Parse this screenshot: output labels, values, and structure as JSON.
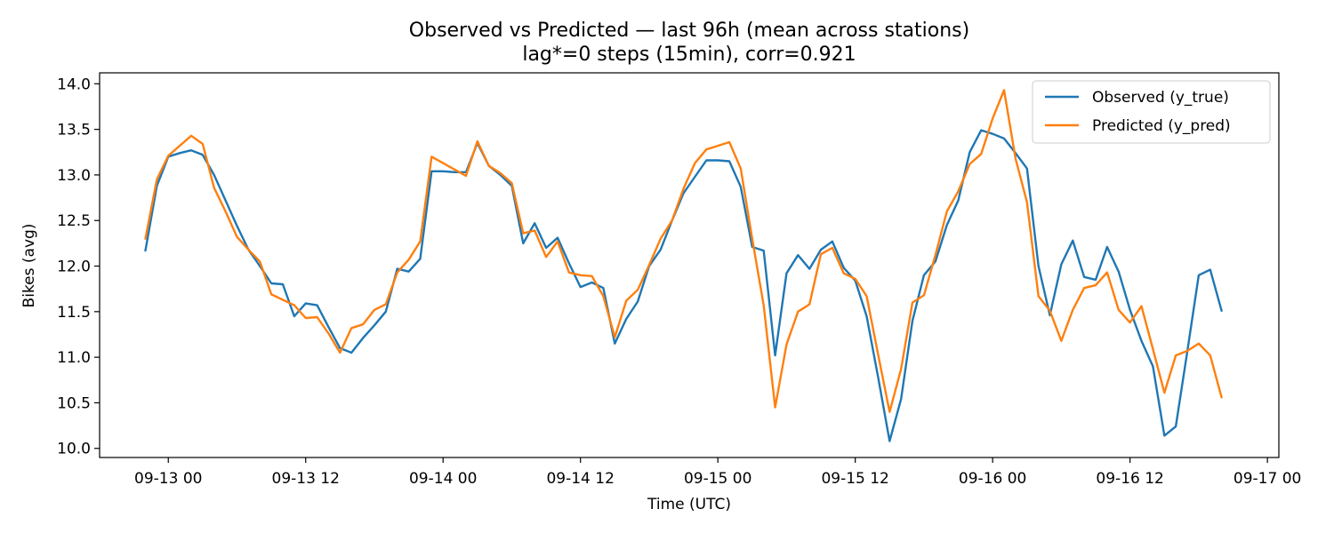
{
  "chart_data": {
    "type": "line",
    "title": "Observed vs Predicted — last 96h (mean across stations)",
    "subtitle": "lag*=0 steps (15min), corr=0.921",
    "xlabel": "Time (UTC)",
    "ylabel": "Bikes (avg)",
    "x_tick_labels": [
      "09-13 00",
      "09-13 12",
      "09-14 00",
      "09-14 12",
      "09-15 00",
      "09-15 12",
      "09-16 00",
      "09-16 12",
      "09-17 00"
    ],
    "y_tick_labels": [
      "10.0",
      "10.5",
      "11.0",
      "11.5",
      "12.0",
      "12.5",
      "13.0",
      "13.5",
      "14.0"
    ],
    "xlim": [
      "2025-09-12 18:00",
      "2025-09-17 01:00"
    ],
    "ylim": [
      9.9,
      14.12
    ],
    "grid": false,
    "legend_position": "top-right",
    "x": [
      "2025-09-12 22:00",
      "2025-09-12 23:00",
      "2025-09-13 00:00",
      "2025-09-13 01:00",
      "2025-09-13 02:00",
      "2025-09-13 03:00",
      "2025-09-13 04:00",
      "2025-09-13 05:00",
      "2025-09-13 06:00",
      "2025-09-13 07:00",
      "2025-09-13 08:00",
      "2025-09-13 09:00",
      "2025-09-13 10:00",
      "2025-09-13 11:00",
      "2025-09-13 12:00",
      "2025-09-13 13:00",
      "2025-09-13 14:00",
      "2025-09-13 15:00",
      "2025-09-13 16:00",
      "2025-09-13 17:00",
      "2025-09-13 18:00",
      "2025-09-13 19:00",
      "2025-09-13 20:00",
      "2025-09-13 21:00",
      "2025-09-13 22:00",
      "2025-09-13 23:00",
      "2025-09-14 00:00",
      "2025-09-14 01:00",
      "2025-09-14 02:00",
      "2025-09-14 03:00",
      "2025-09-14 04:00",
      "2025-09-14 05:00",
      "2025-09-14 06:00",
      "2025-09-14 07:00",
      "2025-09-14 08:00",
      "2025-09-14 09:00",
      "2025-09-14 10:00",
      "2025-09-14 11:00",
      "2025-09-14 12:00",
      "2025-09-14 13:00",
      "2025-09-14 14:00",
      "2025-09-14 15:00",
      "2025-09-14 16:00",
      "2025-09-14 17:00",
      "2025-09-14 18:00",
      "2025-09-14 19:00",
      "2025-09-14 20:00",
      "2025-09-14 21:00",
      "2025-09-14 22:00",
      "2025-09-14 23:00",
      "2025-09-15 00:00",
      "2025-09-15 01:00",
      "2025-09-15 02:00",
      "2025-09-15 03:00",
      "2025-09-15 04:00",
      "2025-09-15 05:00",
      "2025-09-15 06:00",
      "2025-09-15 07:00",
      "2025-09-15 08:00",
      "2025-09-15 09:00",
      "2025-09-15 10:00",
      "2025-09-15 11:00",
      "2025-09-15 12:00",
      "2025-09-15 13:00",
      "2025-09-15 14:00",
      "2025-09-15 15:00",
      "2025-09-15 16:00",
      "2025-09-15 17:00",
      "2025-09-15 18:00",
      "2025-09-15 19:00",
      "2025-09-15 20:00",
      "2025-09-15 21:00",
      "2025-09-15 22:00",
      "2025-09-15 23:00",
      "2025-09-16 00:00",
      "2025-09-16 01:00",
      "2025-09-16 02:00",
      "2025-09-16 03:00",
      "2025-09-16 04:00",
      "2025-09-16 05:00",
      "2025-09-16 06:00",
      "2025-09-16 07:00",
      "2025-09-16 08:00",
      "2025-09-16 09:00",
      "2025-09-16 10:00",
      "2025-09-16 11:00",
      "2025-09-16 12:00",
      "2025-09-16 13:00",
      "2025-09-16 14:00",
      "2025-09-16 15:00",
      "2025-09-16 16:00",
      "2025-09-16 17:00",
      "2025-09-16 18:00",
      "2025-09-16 19:00",
      "2025-09-16 20:00"
    ],
    "series": [
      {
        "name": "Observed (y_true)",
        "color": "#1f77b4",
        "values": [
          12.17,
          12.88,
          13.2,
          13.24,
          13.27,
          13.22,
          13.0,
          12.72,
          12.44,
          12.18,
          12.0,
          11.81,
          11.8,
          11.45,
          11.59,
          11.57,
          11.33,
          11.1,
          11.05,
          11.21,
          11.35,
          11.5,
          11.97,
          11.94,
          12.08,
          13.04,
          13.04,
          13.03,
          13.03,
          13.35,
          13.1,
          13.0,
          12.88,
          12.25,
          12.47,
          12.2,
          12.31,
          12.03,
          11.77,
          11.82,
          11.76,
          11.15,
          11.42,
          11.61,
          12.0,
          12.18,
          12.5,
          12.8,
          12.98,
          13.16,
          13.16,
          13.15,
          12.87,
          12.21,
          12.17,
          11.02,
          11.92,
          12.12,
          11.97,
          12.18,
          12.27,
          11.98,
          11.84,
          11.45,
          10.78,
          10.08,
          10.54,
          11.4,
          11.9,
          12.05,
          12.45,
          12.72,
          13.25,
          13.49,
          13.45,
          13.4,
          13.24,
          13.07,
          12.0,
          11.46,
          12.02,
          12.28,
          11.88,
          11.85,
          12.21,
          11.94,
          11.52,
          11.18,
          10.9,
          10.14,
          10.24,
          11.06,
          11.9,
          11.96,
          11.51
        ]
      },
      {
        "name": "Predicted (y_pred)",
        "color": "#ff7f0e",
        "values": [
          12.3,
          12.95,
          13.21,
          13.32,
          13.43,
          13.34,
          12.86,
          12.6,
          12.32,
          12.18,
          12.05,
          11.69,
          11.63,
          11.57,
          11.43,
          11.44,
          11.26,
          11.05,
          11.32,
          11.36,
          11.52,
          11.58,
          11.93,
          12.07,
          12.27,
          13.2,
          13.13,
          13.06,
          12.99,
          13.37,
          13.1,
          13.02,
          12.91,
          12.36,
          12.39,
          12.1,
          12.27,
          11.93,
          11.9,
          11.89,
          11.67,
          11.22,
          11.62,
          11.74,
          12.01,
          12.3,
          12.5,
          12.85,
          13.13,
          13.28,
          13.32,
          13.36,
          13.07,
          12.3,
          11.57,
          10.45,
          11.14,
          11.5,
          11.58,
          12.13,
          12.2,
          11.92,
          11.86,
          11.67,
          11.03,
          10.4,
          10.87,
          11.6,
          11.68,
          12.12,
          12.6,
          12.82,
          13.12,
          13.23,
          13.62,
          13.93,
          13.18,
          12.7,
          11.67,
          11.51,
          11.18,
          11.52,
          11.76,
          11.79,
          11.93,
          11.52,
          11.38,
          11.56,
          11.09,
          10.61,
          11.02,
          11.07,
          11.15,
          11.02,
          10.56
        ]
      }
    ]
  }
}
